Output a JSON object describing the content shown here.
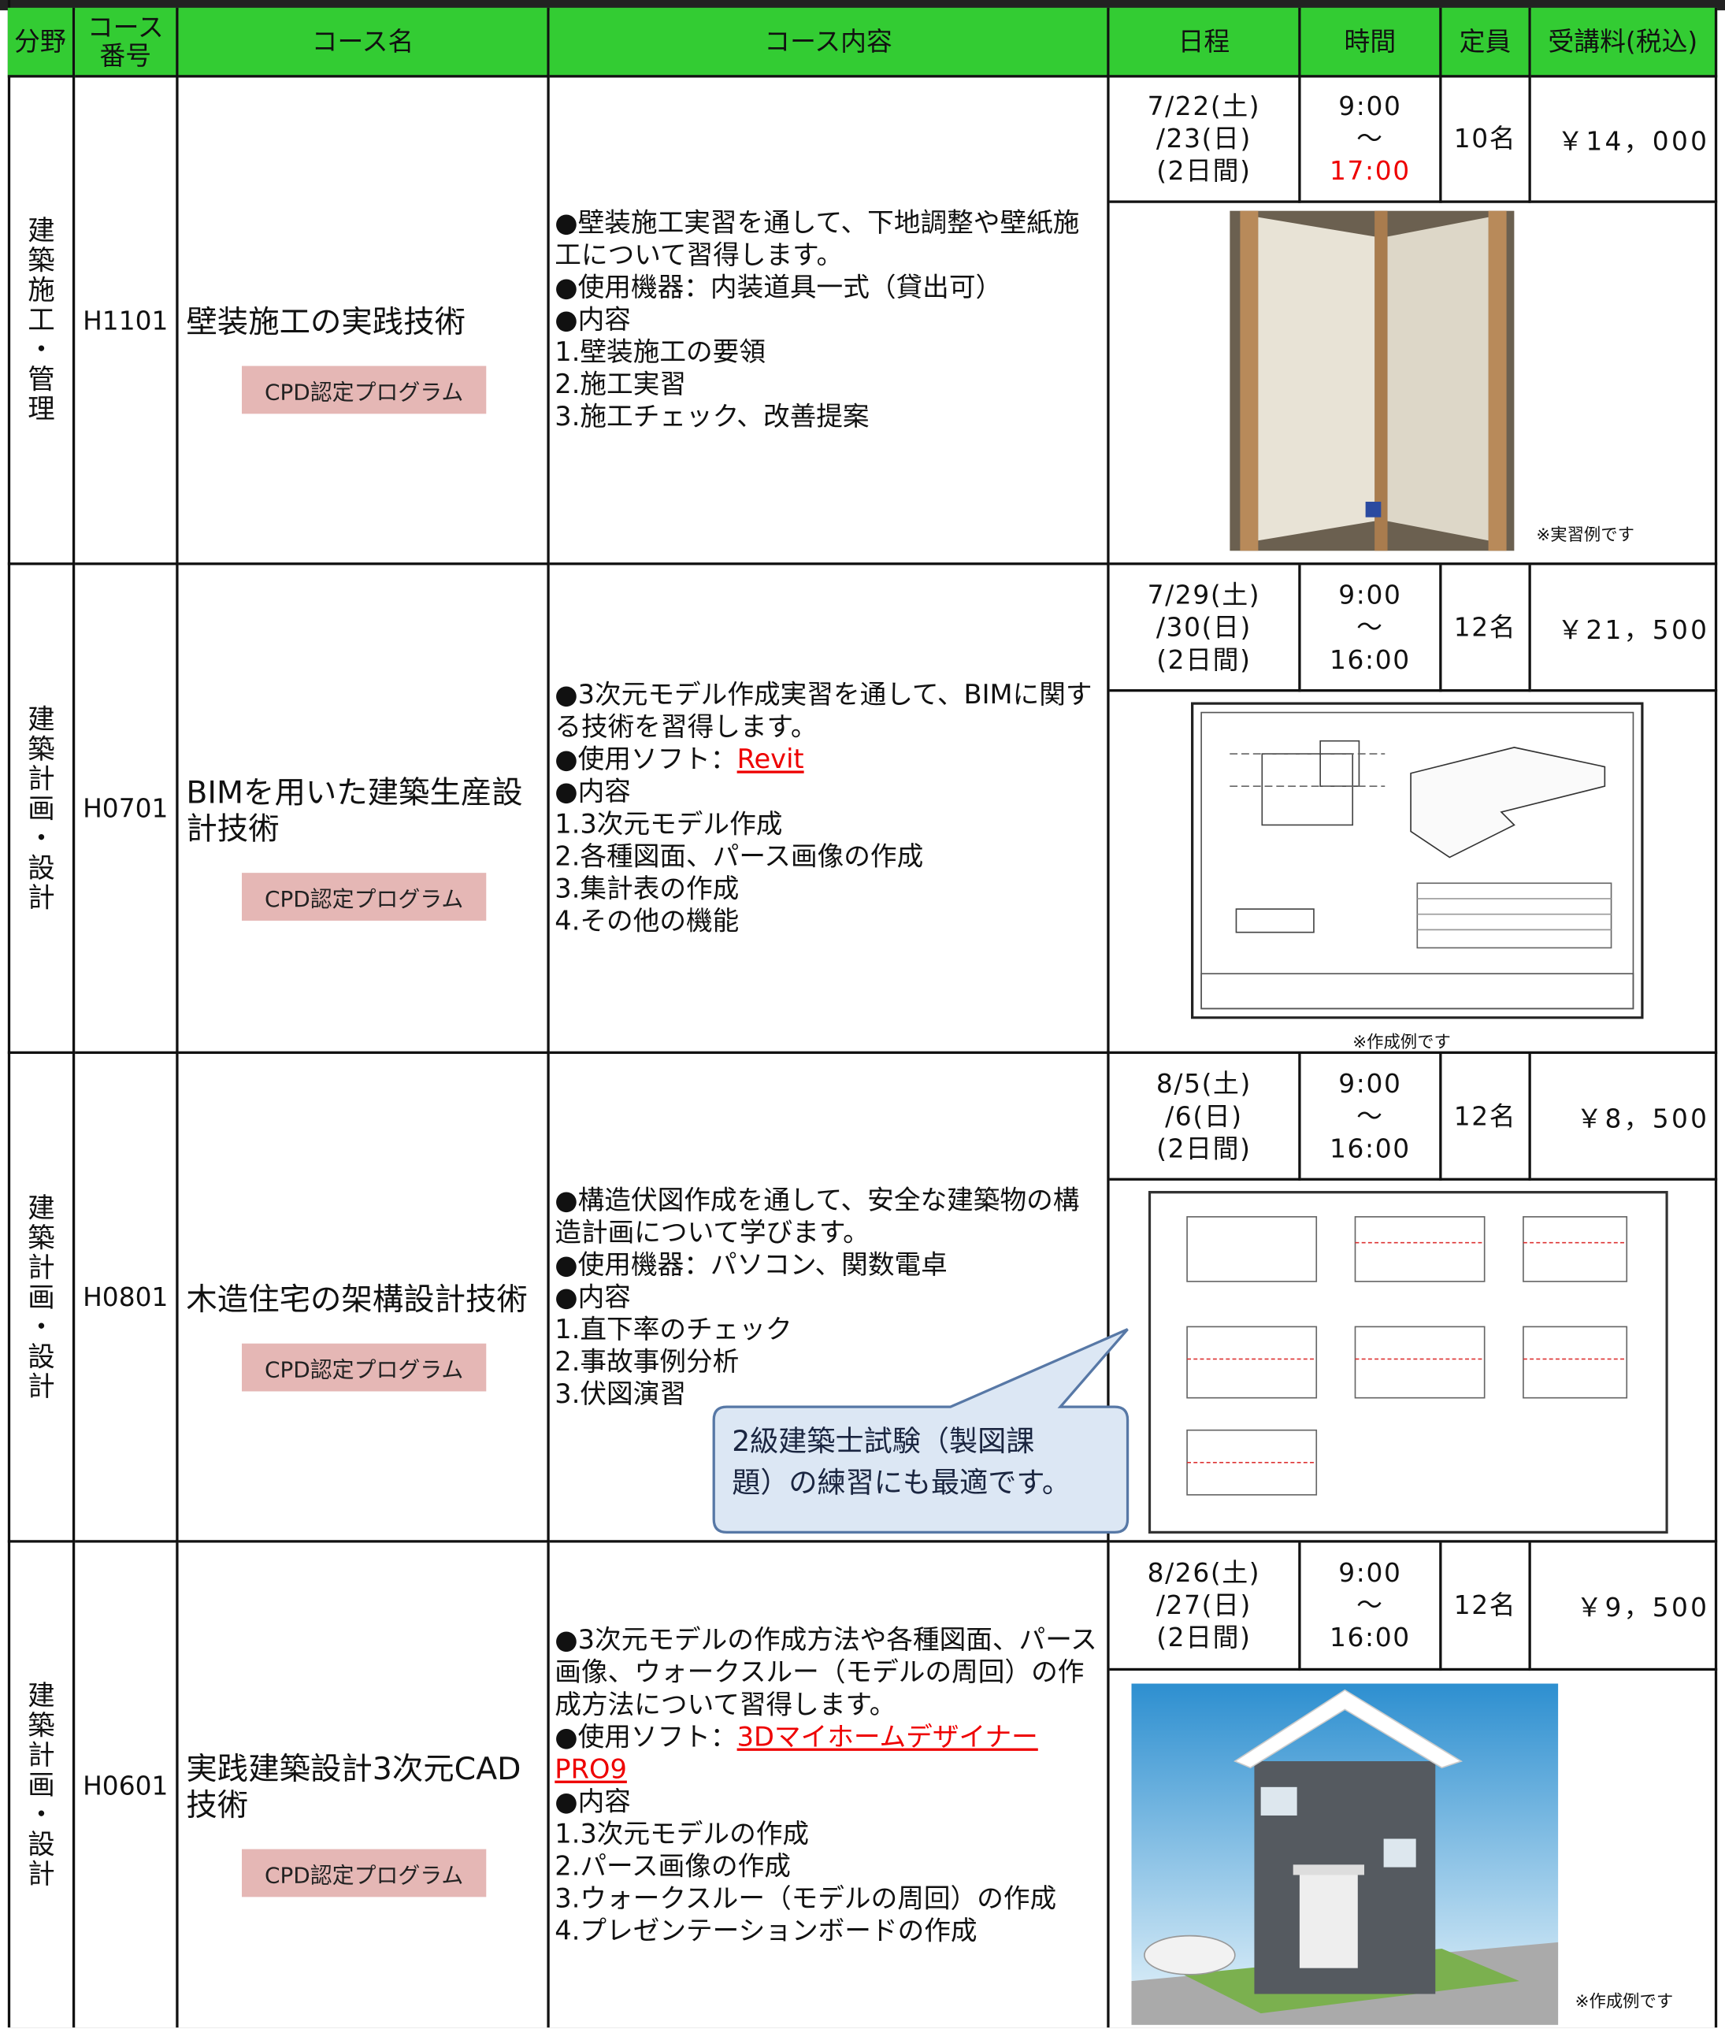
{
  "table": {
    "header": [
      "分野",
      "コース\n番号",
      "コース名",
      "コース内容",
      "日程",
      "時間",
      "定員",
      "受講料(税込)"
    ],
    "rows": [
      {
        "field": "建築施工・管理",
        "code": "H1101",
        "name": "壁装施工の実践技術",
        "badge": "CPD認定プログラム",
        "content": [
          "●壁装施工実習を通して、下地調整や壁紙施工について習得します。",
          "●使用機器：内装道具一式（貸出可）",
          "●内容",
          "1.壁装施工の要領",
          "2.施工実習",
          "3.施工チェック、改善提案"
        ],
        "date": [
          "7/22(土)",
          "/23(日)",
          "(2日間)"
        ],
        "time": [
          "9:00",
          "～"
        ],
        "time_end": "17:00",
        "capacity": "10名",
        "fee": "￥14，000",
        "caption": "※実習例です"
      },
      {
        "field": "建築計画・設計",
        "code": "H0701",
        "name": "BIMを用いた建築生産設計技術",
        "badge": "CPD認定プログラム",
        "content": [
          "●3次元モデル作成実習を通して、BIMに関する技術を習得します。",
          {
            "text": "●使用ソフト：",
            "link": "Revit"
          },
          "●内容",
          "1.3次元モデル作成",
          "2.各種図面、パース画像の作成",
          "3.集計表の作成",
          "4.その他の機能"
        ],
        "date": [
          "7/29(土)",
          "/30(日)",
          "(2日間)"
        ],
        "time": [
          "9:00",
          "～",
          "16:00"
        ],
        "capacity": "12名",
        "fee": "￥21，500",
        "caption": "※作成例です"
      },
      {
        "field": "建築計画・設計",
        "code": "H0801",
        "name": "木造住宅の架構設計技術",
        "badge": "CPD認定プログラム",
        "content": [
          "●構造伏図作成を通して、安全な建築物の構造計画について学びます。",
          "●使用機器：パソコン、関数電卓",
          "●内容",
          "1.直下率のチェック",
          "2.事故事例分析",
          "3.伏図演習"
        ],
        "date": [
          "8/5(土)",
          "/6(日)",
          "(2日間)"
        ],
        "time": [
          "9:00",
          "～",
          "16:00"
        ],
        "capacity": "12名",
        "fee": "￥8，500",
        "callout": [
          "2級建築士試験（製図課",
          "題）の練習にも最適です。"
        ]
      },
      {
        "field": "建築計画・設計",
        "code": "H0601",
        "name": "実践建築設計3次元CAD技術",
        "badge": "CPD認定プログラム",
        "content": [
          "●3次元モデルの作成方法や各種図面、パース画像、ウォークスルー（モデルの周回）の作成方法について習得します。",
          {
            "text": "●使用ソフト：",
            "link": "3Dマイホームデザイナー PRO9"
          },
          "●内容",
          "1.3次元モデルの作成",
          "2.パース画像の作成",
          "3.ウォークスルー（モデルの周回）の作成",
          "4.プレゼンテーションボードの作成"
        ],
        "date": [
          "8/26(土)",
          "/27(日)",
          "(2日間)"
        ],
        "time": [
          "9:00",
          "～",
          "16:00"
        ],
        "capacity": "12名",
        "fee": "￥9，500",
        "caption": "※作成例です"
      }
    ]
  }
}
